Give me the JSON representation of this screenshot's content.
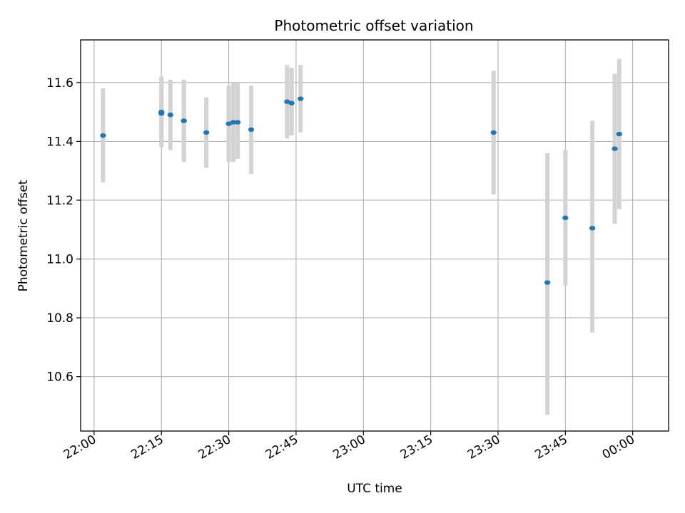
{
  "chart_data": {
    "type": "scatter",
    "title": "Photometric offset variation",
    "xlabel": "UTC time",
    "ylabel": "Photometric offset",
    "x_unit": "UTC time (HH:MM)",
    "xlim": [
      "21:57",
      "00:08"
    ],
    "ylim": [
      10.415,
      11.745
    ],
    "x_ticks": [
      "22:00",
      "22:15",
      "22:30",
      "22:45",
      "23:00",
      "23:15",
      "23:30",
      "23:45",
      "00:00"
    ],
    "y_ticks": [
      "10.6",
      "10.8",
      "11.0",
      "11.2",
      "11.4",
      "11.6"
    ],
    "grid": true,
    "colors": {
      "point": "#1f77b4",
      "errorbar": "#d3d3d3",
      "grid": "#b0b0b0"
    },
    "series": [
      {
        "points": [
          {
            "x": "22:02",
            "y": 11.42,
            "low": 11.26,
            "high": 11.58
          },
          {
            "x": "22:15",
            "y": 11.5,
            "low": 11.39,
            "high": 11.62
          },
          {
            "x": "22:15",
            "y": 11.495,
            "low": 11.38,
            "high": 11.62
          },
          {
            "x": "22:17",
            "y": 11.49,
            "low": 11.37,
            "high": 11.61
          },
          {
            "x": "22:20",
            "y": 11.47,
            "low": 11.33,
            "high": 11.61
          },
          {
            "x": "22:20",
            "y": 11.47,
            "low": 11.34,
            "high": 11.61
          },
          {
            "x": "22:25",
            "y": 11.43,
            "low": 11.31,
            "high": 11.55
          },
          {
            "x": "22:30",
            "y": 11.46,
            "low": 11.33,
            "high": 11.59
          },
          {
            "x": "22:31",
            "y": 11.465,
            "low": 11.33,
            "high": 11.6
          },
          {
            "x": "22:32",
            "y": 11.465,
            "low": 11.34,
            "high": 11.6
          },
          {
            "x": "22:35",
            "y": 11.44,
            "low": 11.29,
            "high": 11.59
          },
          {
            "x": "22:43",
            "y": 11.535,
            "low": 11.41,
            "high": 11.66
          },
          {
            "x": "22:44",
            "y": 11.53,
            "low": 11.42,
            "high": 11.65
          },
          {
            "x": "22:46",
            "y": 11.545,
            "low": 11.43,
            "high": 11.66
          },
          {
            "x": "23:29",
            "y": 11.43,
            "low": 11.22,
            "high": 11.64
          },
          {
            "x": "23:41",
            "y": 10.92,
            "low": 10.47,
            "high": 11.36
          },
          {
            "x": "23:45",
            "y": 11.14,
            "low": 10.91,
            "high": 11.37
          },
          {
            "x": "23:51",
            "y": 11.105,
            "low": 10.75,
            "high": 11.47
          },
          {
            "x": "23:56",
            "y": 11.375,
            "low": 11.12,
            "high": 11.63
          },
          {
            "x": "23:57",
            "y": 11.425,
            "low": 11.17,
            "high": 11.68
          }
        ]
      }
    ]
  }
}
